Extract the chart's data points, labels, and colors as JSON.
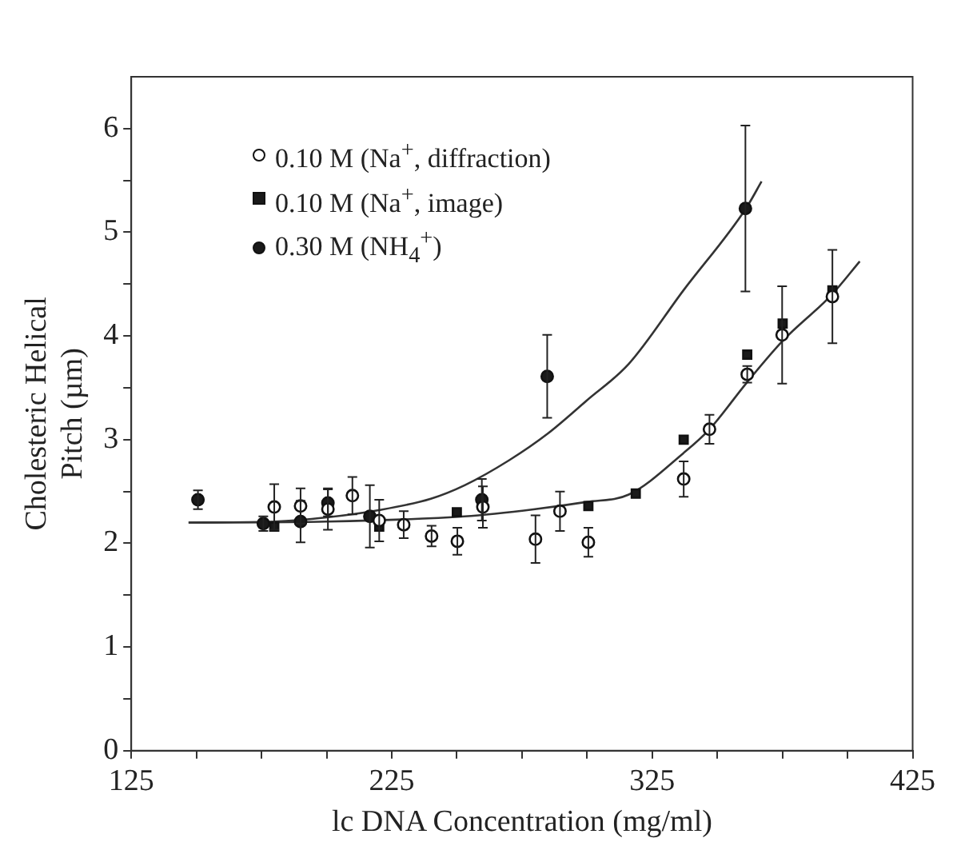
{
  "chart_data": {
    "type": "scatter",
    "xlabel": "lc DNA Concentration (mg/ml)",
    "ylabel": "Cholesteric Helical Pitch (µm)",
    "xlim": [
      125,
      425
    ],
    "xticks": [
      125,
      {
        "value": 150,
        "label": null
      },
      {
        "value": 175,
        "label": null
      },
      {
        "value": 200,
        "label": null
      },
      225,
      {
        "value": 250,
        "label": null
      },
      {
        "value": 275,
        "label": null
      },
      {
        "value": 300,
        "label": null
      },
      325,
      {
        "value": 350,
        "label": null
      },
      {
        "value": 375,
        "label": null
      },
      {
        "value": 400,
        "label": null
      },
      425
    ],
    "ylim": [
      0,
      6.5
    ],
    "yticks": [
      0,
      {
        "value": 0.5,
        "label": null
      },
      1,
      {
        "value": 1.5,
        "label": null
      },
      2,
      {
        "value": 2.5,
        "label": null
      },
      3,
      {
        "value": 3.5,
        "label": null
      },
      4,
      {
        "value": 4.5,
        "label": null
      },
      5,
      {
        "value": 5.5,
        "label": null
      },
      6
    ],
    "legend": "top left",
    "grid": false,
    "series": [
      {
        "name": "0.10 M (Na$^{+}$, diffraction)",
        "type": "scatter",
        "marker": "circle",
        "color": "#ffffff",
        "x": [
          179.9,
          190,
          200.5,
          209.9,
          220.2,
          229.6,
          240.3,
          250.2,
          260,
          280.2,
          289.6,
          300.5,
          337.1,
          347,
          361.5,
          374.9,
          394.2
        ],
        "values": [
          2.35,
          2.36,
          2.33,
          2.46,
          2.22,
          2.18,
          2.07,
          2.02,
          2.35,
          2.04,
          2.31,
          2.01,
          2.62,
          3.1,
          3.63,
          4.01,
          4.38
        ],
        "errors": [
          0.22,
          0.17,
          0.2,
          0.18,
          0.2,
          0.13,
          0.1,
          0.13,
          0.2,
          0.23,
          0.19,
          0.14,
          0.17,
          0.14,
          0.08,
          0.47,
          0.45
        ]
      },
      {
        "name": "0.10 M (Na$^{+}$, image)",
        "type": "scatter",
        "marker": "square",
        "color": "#1a1a1a",
        "x": [
          179.9,
          220.2,
          250,
          300.5,
          318.7,
          337.1,
          361.5,
          375.1,
          394.2
        ],
        "values": [
          2.16,
          2.16,
          2.3,
          2.36,
          2.48,
          3.0,
          3.82,
          4.12,
          4.44
        ]
      },
      {
        "name": "0.30 M (NH$_{4}$$^{+}$)",
        "type": "scatter",
        "marker": "circle",
        "color": "#1a1a1a",
        "x": [
          150.6,
          175.7,
          190,
          200.5,
          216.6,
          259.6,
          284.7,
          360.8
        ],
        "values": [
          2.42,
          2.19,
          2.21,
          2.39,
          2.26,
          2.42,
          3.61,
          5.23
        ],
        "errors": [
          0.09,
          0.07,
          0.2,
          0.13,
          0.3,
          0.2,
          0.4,
          0.8
        ]
      },
      {
        "type": "line",
        "marker": "none",
        "color": "#333333",
        "x": [
          147,
          180,
          200,
          220,
          240,
          253,
          270,
          285,
          300,
          316,
          337,
          361,
          367
        ],
        "values": [
          2.2,
          2.21,
          2.25,
          2.32,
          2.43,
          2.56,
          2.8,
          3.06,
          3.38,
          3.73,
          4.44,
          5.23,
          5.49
        ]
      },
      {
        "type": "line",
        "marker": "none",
        "color": "#333333",
        "x": [
          147,
          200,
          253,
          280,
          300,
          316,
          337,
          347,
          361,
          375,
          394,
          404.7
        ],
        "values": [
          2.2,
          2.21,
          2.26,
          2.33,
          2.4,
          2.47,
          2.87,
          3.1,
          3.54,
          3.95,
          4.4,
          4.72
        ]
      }
    ]
  }
}
